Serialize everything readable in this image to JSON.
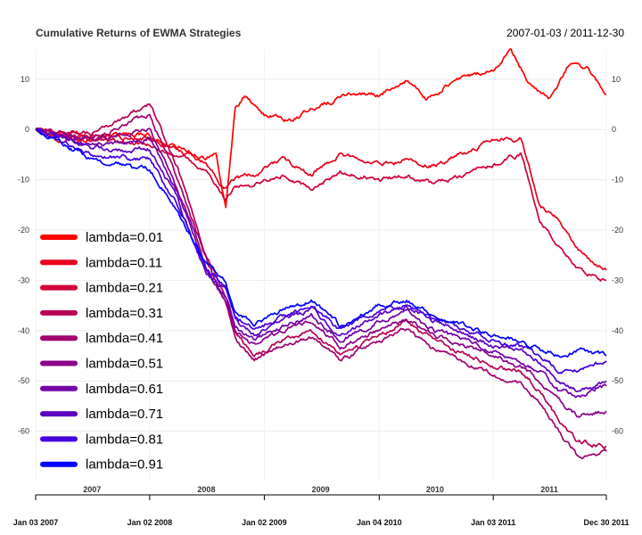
{
  "chart_data": {
    "type": "line",
    "title": "Cumulative Returns of EWMA Strategies",
    "date_range": "2007-01-03 / 2011-12-30",
    "x_start": "2007-01-03",
    "x_end": "2011-12-30",
    "ylim": [
      -70,
      16
    ],
    "y_ticks": [
      10,
      0,
      -10,
      -20,
      -30,
      -40,
      -50,
      -60
    ],
    "y_tick_labels": [
      "10",
      "0",
      "-10",
      "-20",
      "-30",
      "-40",
      "-50",
      "-60"
    ],
    "year_labels": [
      "2007",
      "2008",
      "2009",
      "2010",
      "2011"
    ],
    "year_label_dates": [
      "2007-07-02",
      "2008-07-01",
      "2009-07-01",
      "2010-07-01",
      "2011-07-01"
    ],
    "year_boundary_dates": [
      "2007-01-03",
      "2008-01-02",
      "2009-01-02",
      "2010-01-04",
      "2011-01-03",
      "2011-12-30"
    ],
    "date_labels": [
      "Jan 03 2007",
      "Jan 02 2008",
      "Jan 02 2009",
      "Jan 04 2010",
      "Jan 03 2011",
      "Dec 30 2011"
    ],
    "date_label_dates": [
      "2007-01-03",
      "2008-01-02",
      "2009-01-02",
      "2010-01-04",
      "2011-01-03",
      "2011-12-30"
    ],
    "grid": true,
    "legend_position": "left",
    "series": [
      {
        "name": "lambda=0.01",
        "color": "#ff0000",
        "x": [
          "2007-01-03",
          "2007-04-01",
          "2007-07-01",
          "2007-10-01",
          "2008-01-02",
          "2008-03-01",
          "2008-05-01",
          "2008-06-01",
          "2008-07-01",
          "2008-08-01",
          "2008-09-01",
          "2008-10-01",
          "2008-11-01",
          "2009-01-02",
          "2009-04-01",
          "2009-07-01",
          "2009-10-01",
          "2010-01-04",
          "2010-04-01",
          "2010-06-01",
          "2010-09-01",
          "2011-01-03",
          "2011-03-01",
          "2011-05-01",
          "2011-07-01",
          "2011-09-01",
          "2011-11-01",
          "2011-12-30"
        ],
        "values": [
          0,
          -3,
          -2,
          -1,
          -1,
          -3,
          -4,
          -5,
          -6,
          -5,
          -15,
          4,
          7,
          3,
          2,
          5,
          7,
          7,
          10,
          6,
          10,
          12,
          16,
          9,
          6,
          13,
          12,
          7
        ]
      },
      {
        "name": "lambda=0.11",
        "color": "#e8001c",
        "x": [
          "2007-01-03",
          "2007-07-01",
          "2008-01-02",
          "2008-05-01",
          "2008-07-01",
          "2008-09-01",
          "2008-10-01",
          "2008-12-01",
          "2009-03-01",
          "2009-06-01",
          "2009-09-01",
          "2010-01-04",
          "2010-04-01",
          "2010-07-01",
          "2011-01-03",
          "2011-04-01",
          "2011-06-01",
          "2011-08-01",
          "2011-10-01",
          "2011-12-30"
        ],
        "values": [
          0,
          -1,
          -2,
          -5,
          -7,
          -12,
          -10,
          -9,
          -6,
          -9,
          -5,
          -7,
          -6,
          -7,
          -2,
          -2,
          -15,
          -18,
          -24,
          -28
        ]
      },
      {
        "name": "lambda=0.21",
        "color": "#d10038",
        "x": [
          "2007-01-03",
          "2007-07-01",
          "2008-01-02",
          "2008-05-01",
          "2008-07-01",
          "2008-09-01",
          "2008-10-01",
          "2008-12-01",
          "2009-03-01",
          "2009-06-01",
          "2009-09-01",
          "2010-01-04",
          "2010-04-01",
          "2010-07-01",
          "2011-01-03",
          "2011-04-01",
          "2011-06-01",
          "2011-08-01",
          "2011-10-01",
          "2011-12-30"
        ],
        "values": [
          0,
          -2,
          -3,
          -6,
          -8,
          -14,
          -11,
          -11,
          -9,
          -12,
          -8,
          -10,
          -9,
          -11,
          -7,
          -5,
          -18,
          -23,
          -28,
          -30
        ]
      },
      {
        "name": "lambda=0.31",
        "color": "#b90054",
        "x": [
          "2007-01-03",
          "2007-07-01",
          "2008-01-02",
          "2008-04-01",
          "2008-07-01",
          "2008-09-01",
          "2008-10-01",
          "2008-12-01",
          "2009-03-01",
          "2009-06-01",
          "2009-09-01",
          "2010-01-04",
          "2010-04-01",
          "2010-07-01",
          "2011-01-03",
          "2011-04-01",
          "2011-06-01",
          "2011-08-01",
          "2011-10-01",
          "2011-12-30"
        ],
        "values": [
          0,
          -1,
          5,
          -8,
          -25,
          -33,
          -40,
          -45,
          -42,
          -40,
          -45,
          -41,
          -38,
          -42,
          -47,
          -48,
          -52,
          -58,
          -62,
          -63
        ]
      },
      {
        "name": "lambda=0.41",
        "color": "#a20070",
        "x": [
          "2007-01-03",
          "2007-07-01",
          "2008-01-02",
          "2008-04-01",
          "2008-07-01",
          "2008-09-01",
          "2008-10-01",
          "2008-12-01",
          "2009-03-01",
          "2009-06-01",
          "2009-09-01",
          "2010-01-04",
          "2010-04-01",
          "2010-07-01",
          "2011-01-03",
          "2011-04-01",
          "2011-06-01",
          "2011-08-01",
          "2011-10-01",
          "2011-12-30"
        ],
        "values": [
          0,
          -2,
          3,
          -10,
          -26,
          -35,
          -42,
          -46,
          -43,
          -41,
          -46,
          -42,
          -40,
          -44,
          -49,
          -50,
          -54,
          -60,
          -65,
          -64
        ]
      },
      {
        "name": "lambda=0.51",
        "color": "#8b008b",
        "x": [
          "2007-01-03",
          "2007-07-01",
          "2008-01-02",
          "2008-04-01",
          "2008-07-01",
          "2008-09-01",
          "2008-10-01",
          "2008-12-01",
          "2009-03-01",
          "2009-06-01",
          "2009-09-01",
          "2010-01-04",
          "2010-04-01",
          "2010-07-01",
          "2011-01-03",
          "2011-04-01",
          "2011-06-01",
          "2011-08-01",
          "2011-10-01",
          "2011-12-30"
        ],
        "values": [
          0,
          -2,
          0,
          -12,
          -27,
          -34,
          -40,
          -43,
          -40,
          -38,
          -43,
          -40,
          -38,
          -41,
          -45,
          -47,
          -50,
          -54,
          -57,
          -56
        ]
      },
      {
        "name": "lambda=0.61",
        "color": "#7300a7",
        "x": [
          "2007-01-03",
          "2007-07-01",
          "2008-01-02",
          "2008-04-01",
          "2008-07-01",
          "2008-09-01",
          "2008-10-01",
          "2008-12-01",
          "2009-03-01",
          "2009-06-01",
          "2009-09-01",
          "2010-01-04",
          "2010-04-01",
          "2010-07-01",
          "2011-01-03",
          "2011-04-01",
          "2011-06-01",
          "2011-08-01",
          "2011-10-01",
          "2011-12-30"
        ],
        "values": [
          0,
          -3,
          -2,
          -13,
          -28,
          -33,
          -39,
          -42,
          -39,
          -37,
          -42,
          -38,
          -36,
          -40,
          -44,
          -46,
          -48,
          -52,
          -53,
          -51
        ]
      },
      {
        "name": "lambda=0.71",
        "color": "#5c00c3",
        "x": [
          "2007-01-03",
          "2007-07-01",
          "2008-01-02",
          "2008-04-01",
          "2008-07-01",
          "2008-09-01",
          "2008-10-01",
          "2008-12-01",
          "2009-03-01",
          "2009-06-01",
          "2009-09-01",
          "2010-01-04",
          "2010-04-01",
          "2010-07-01",
          "2011-01-03",
          "2011-04-01",
          "2011-06-01",
          "2011-08-01",
          "2011-10-01",
          "2011-12-30"
        ],
        "values": [
          0,
          -4,
          -4,
          -14,
          -29,
          -32,
          -38,
          -41,
          -38,
          -36,
          -41,
          -37,
          -35,
          -38,
          -43,
          -44,
          -46,
          -50,
          -52,
          -50
        ]
      },
      {
        "name": "lambda=0.81",
        "color": "#4400df",
        "x": [
          "2007-01-03",
          "2007-07-01",
          "2008-01-02",
          "2008-04-01",
          "2008-07-01",
          "2008-09-01",
          "2008-10-01",
          "2008-12-01",
          "2009-03-01",
          "2009-06-01",
          "2009-09-01",
          "2010-01-04",
          "2010-04-01",
          "2010-07-01",
          "2011-01-03",
          "2011-04-01",
          "2011-06-01",
          "2011-08-01",
          "2011-10-01",
          "2011-12-30"
        ],
        "values": [
          0,
          -5,
          -6,
          -15,
          -28,
          -31,
          -37,
          -40,
          -37,
          -35,
          -40,
          -36,
          -35,
          -38,
          -42,
          -43,
          -45,
          -48,
          -48,
          -46
        ]
      },
      {
        "name": "lambda=0.91",
        "color": "#0000ff",
        "x": [
          "2007-01-03",
          "2007-07-01",
          "2008-01-02",
          "2008-04-01",
          "2008-07-01",
          "2008-09-01",
          "2008-10-01",
          "2008-12-01",
          "2009-03-01",
          "2009-06-01",
          "2009-09-01",
          "2010-01-04",
          "2010-04-01",
          "2010-07-01",
          "2011-01-03",
          "2011-04-01",
          "2011-06-01",
          "2011-08-01",
          "2011-10-01",
          "2011-12-30"
        ],
        "values": [
          0,
          -6,
          -8,
          -16,
          -27,
          -30,
          -36,
          -39,
          -36,
          -34,
          -39,
          -35,
          -34,
          -37,
          -41,
          -42,
          -44,
          -45,
          -44,
          -45
        ]
      }
    ]
  }
}
